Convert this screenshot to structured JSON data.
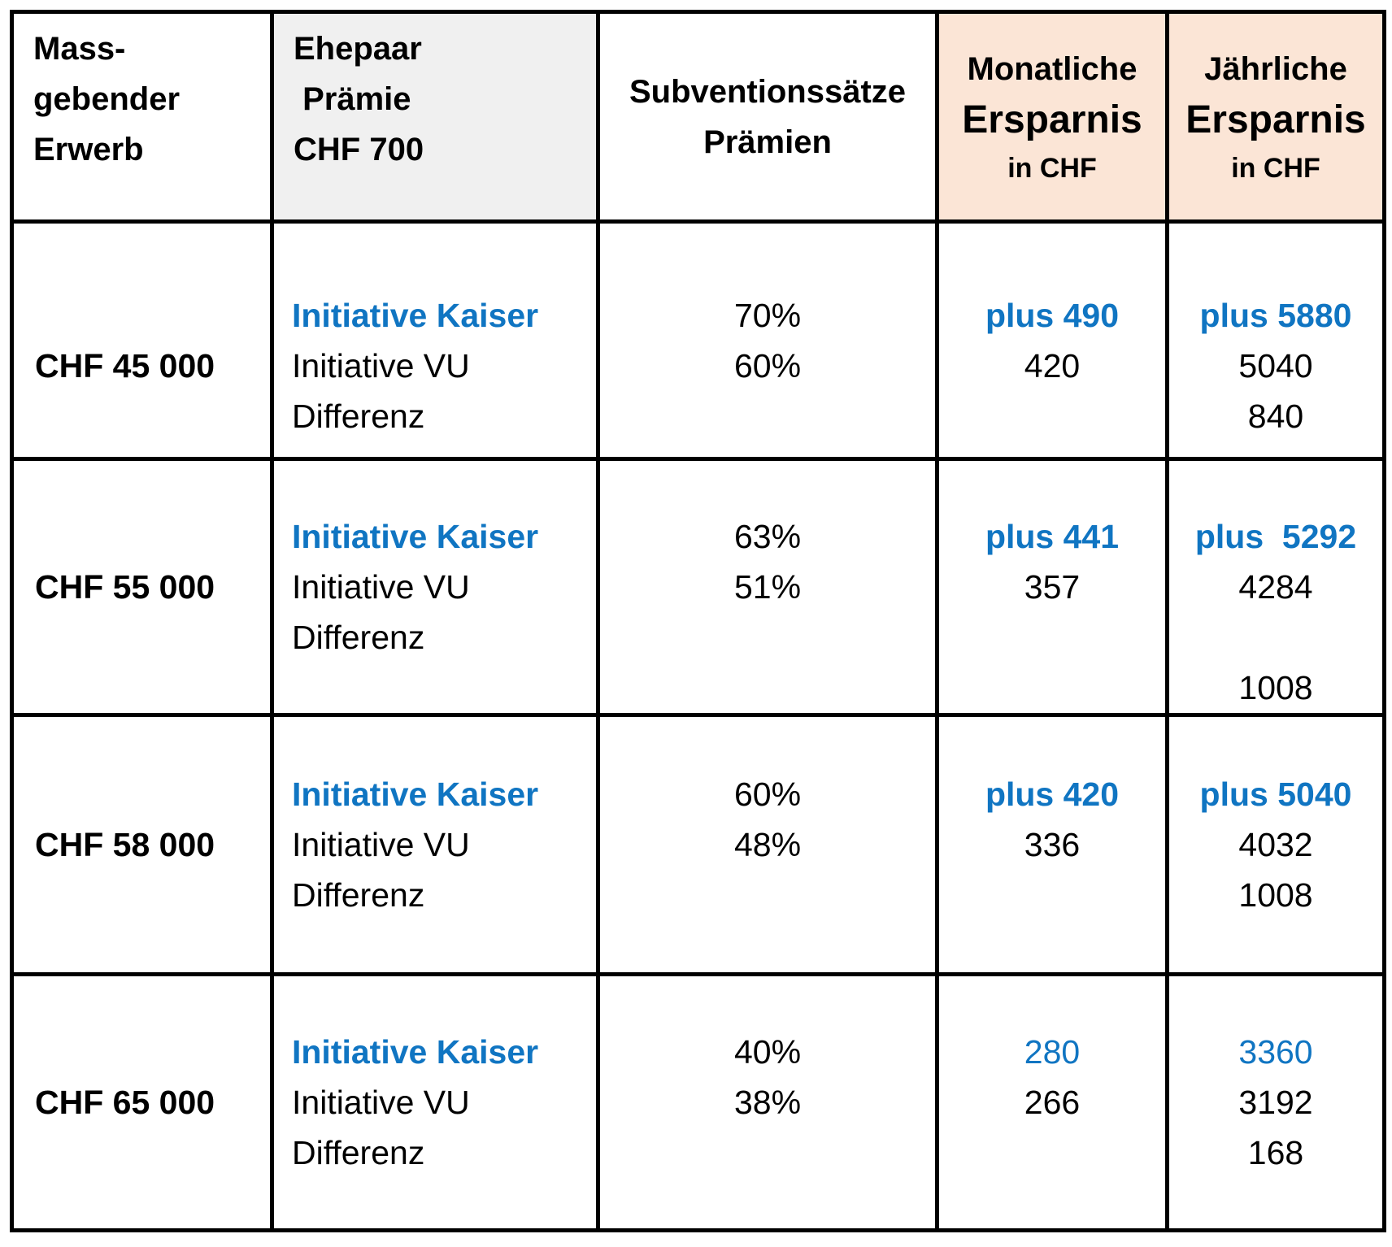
{
  "colors": {
    "accent_blue": "#1075C2",
    "header_peach": "#FBE5D6",
    "header_gray": "#F0F0F0",
    "border_black": "#000000"
  },
  "table": {
    "header": {
      "cells": [
        {
          "id": "massgebender-erwerb",
          "lines": [
            {
              "text": "Mass-",
              "style": "hbold"
            },
            {
              "text": "gebender",
              "style": "hbold"
            },
            {
              "text": "Erwerb",
              "style": "hbold"
            }
          ]
        },
        {
          "id": "ehepaar-praemie",
          "lines": [
            {
              "text": "Ehepaar",
              "style": "hbold"
            },
            {
              "text": " Prämie",
              "style": "hbold"
            },
            {
              "text": "CHF 700",
              "style": "hbold"
            }
          ]
        },
        {
          "id": "subventionssaetze",
          "lines": [
            {
              "text": "Subventionssätze",
              "style": "hbold"
            },
            {
              "text": "Prämien",
              "style": "hbold"
            }
          ]
        },
        {
          "id": "monatliche-ersparnis",
          "lines": [
            {
              "text": "Monatliche",
              "style": "hbold"
            },
            {
              "text": "Ersparnis",
              "style": "hbig"
            },
            {
              "text": "in CHF",
              "style": "hsmall"
            }
          ]
        },
        {
          "id": "jaehrliche-ersparnis",
          "lines": [
            {
              "text": "Jährliche",
              "style": "hbold"
            },
            {
              "text": "Ersparnis",
              "style": "hbig"
            },
            {
              "text": "in CHF",
              "style": "hsmall"
            }
          ]
        }
      ]
    },
    "rows": [
      {
        "id": "row-chf-45000",
        "cells": [
          {
            "name": "cell-income",
            "lines": [
              {
                "text": "",
                "style": ""
              },
              {
                "text": "",
                "style": ""
              },
              {
                "text": "CHF 45 000",
                "style": "bold"
              },
              {
                "text": "",
                "style": ""
              }
            ]
          },
          {
            "name": "cell-variant-labels",
            "lines": [
              {
                "text": "",
                "style": ""
              },
              {
                "text": "Initiative Kaiser",
                "style": "blue-bold"
              },
              {
                "text": "Initiative VU",
                "style": ""
              },
              {
                "text": "Differenz",
                "style": ""
              }
            ]
          },
          {
            "name": "cell-subsidy-rates",
            "lines": [
              {
                "text": "",
                "style": ""
              },
              {
                "text": "70%",
                "style": ""
              },
              {
                "text": "60%",
                "style": ""
              },
              {
                "text": "",
                "style": ""
              }
            ]
          },
          {
            "name": "cell-monthly-savings",
            "lines": [
              {
                "text": "",
                "style": ""
              },
              {
                "text": "plus 490",
                "style": "blue-bold"
              },
              {
                "text": "420",
                "style": ""
              },
              {
                "text": "",
                "style": ""
              }
            ]
          },
          {
            "name": "cell-yearly-savings",
            "lines": [
              {
                "text": "",
                "style": ""
              },
              {
                "text": "plus 5880",
                "style": "blue-bold"
              },
              {
                "text": "5040",
                "style": ""
              },
              {
                "text": "840",
                "style": ""
              }
            ]
          }
        ]
      },
      {
        "id": "row-chf-55000",
        "cells": [
          {
            "name": "cell-income",
            "lines": [
              {
                "text": "",
                "style": ""
              },
              {
                "text": "",
                "style": ""
              },
              {
                "text": "CHF 55 000",
                "style": "bold"
              },
              {
                "text": "",
                "style": ""
              },
              {
                "text": "",
                "style": ""
              }
            ]
          },
          {
            "name": "cell-variant-labels",
            "lines": [
              {
                "text": "",
                "style": ""
              },
              {
                "text": "Initiative Kaiser",
                "style": "blue-bold"
              },
              {
                "text": "Initiative VU",
                "style": ""
              },
              {
                "text": "Differenz",
                "style": ""
              },
              {
                "text": "",
                "style": ""
              }
            ]
          },
          {
            "name": "cell-subsidy-rates",
            "lines": [
              {
                "text": "",
                "style": ""
              },
              {
                "text": "63%",
                "style": ""
              },
              {
                "text": "51%",
                "style": ""
              },
              {
                "text": "",
                "style": ""
              },
              {
                "text": "",
                "style": ""
              }
            ]
          },
          {
            "name": "cell-monthly-savings",
            "lines": [
              {
                "text": "",
                "style": ""
              },
              {
                "text": "plus 441",
                "style": "blue-bold"
              },
              {
                "text": "357",
                "style": ""
              },
              {
                "text": "",
                "style": ""
              },
              {
                "text": "",
                "style": ""
              }
            ]
          },
          {
            "name": "cell-yearly-savings",
            "lines": [
              {
                "text": "",
                "style": ""
              },
              {
                "text": "plus  5292",
                "style": "blue-bold"
              },
              {
                "text": "4284",
                "style": ""
              },
              {
                "text": "",
                "style": ""
              },
              {
                "text": "1008",
                "style": ""
              }
            ]
          }
        ]
      },
      {
        "id": "row-chf-58000",
        "cells": [
          {
            "name": "cell-income",
            "lines": [
              {
                "text": "",
                "style": ""
              },
              {
                "text": "",
                "style": ""
              },
              {
                "text": "CHF 58 000",
                "style": "bold"
              },
              {
                "text": "",
                "style": ""
              },
              {
                "text": "",
                "style": ""
              }
            ]
          },
          {
            "name": "cell-variant-labels",
            "lines": [
              {
                "text": "",
                "style": ""
              },
              {
                "text": "Initiative Kaiser",
                "style": "blue-bold"
              },
              {
                "text": "Initiative VU",
                "style": ""
              },
              {
                "text": "Differenz",
                "style": ""
              },
              {
                "text": "",
                "style": ""
              }
            ]
          },
          {
            "name": "cell-subsidy-rates",
            "lines": [
              {
                "text": "",
                "style": ""
              },
              {
                "text": "60%",
                "style": ""
              },
              {
                "text": "48%",
                "style": ""
              },
              {
                "text": "",
                "style": ""
              },
              {
                "text": "",
                "style": ""
              }
            ]
          },
          {
            "name": "cell-monthly-savings",
            "lines": [
              {
                "text": "",
                "style": ""
              },
              {
                "text": "plus 420",
                "style": "blue-bold"
              },
              {
                "text": "336",
                "style": ""
              },
              {
                "text": "",
                "style": ""
              },
              {
                "text": "",
                "style": ""
              }
            ]
          },
          {
            "name": "cell-yearly-savings",
            "lines": [
              {
                "text": "",
                "style": ""
              },
              {
                "text": "plus 5040",
                "style": "blue-bold"
              },
              {
                "text": "4032",
                "style": ""
              },
              {
                "text": "1008",
                "style": ""
              },
              {
                "text": "",
                "style": ""
              }
            ]
          }
        ]
      },
      {
        "id": "row-chf-65000",
        "cells": [
          {
            "name": "cell-income",
            "lines": [
              {
                "text": "",
                "style": ""
              },
              {
                "text": "",
                "style": ""
              },
              {
                "text": "CHF 65 000",
                "style": "bold"
              },
              {
                "text": "",
                "style": ""
              },
              {
                "text": "",
                "style": ""
              }
            ]
          },
          {
            "name": "cell-variant-labels",
            "lines": [
              {
                "text": "",
                "style": ""
              },
              {
                "text": "Initiative Kaiser",
                "style": "blue-bold"
              },
              {
                "text": "Initiative VU",
                "style": ""
              },
              {
                "text": "Differenz",
                "style": ""
              },
              {
                "text": "",
                "style": ""
              }
            ]
          },
          {
            "name": "cell-subsidy-rates",
            "lines": [
              {
                "text": "",
                "style": ""
              },
              {
                "text": "40%",
                "style": ""
              },
              {
                "text": "38%",
                "style": ""
              },
              {
                "text": "",
                "style": ""
              },
              {
                "text": "",
                "style": ""
              }
            ]
          },
          {
            "name": "cell-monthly-savings",
            "lines": [
              {
                "text": "",
                "style": ""
              },
              {
                "text": "280",
                "style": "blue"
              },
              {
                "text": "266",
                "style": ""
              },
              {
                "text": "",
                "style": ""
              },
              {
                "text": "",
                "style": ""
              }
            ]
          },
          {
            "name": "cell-yearly-savings",
            "lines": [
              {
                "text": "",
                "style": ""
              },
              {
                "text": "3360",
                "style": "blue"
              },
              {
                "text": "3192",
                "style": ""
              },
              {
                "text": "168",
                "style": ""
              },
              {
                "text": "",
                "style": ""
              }
            ]
          }
        ]
      }
    ]
  }
}
